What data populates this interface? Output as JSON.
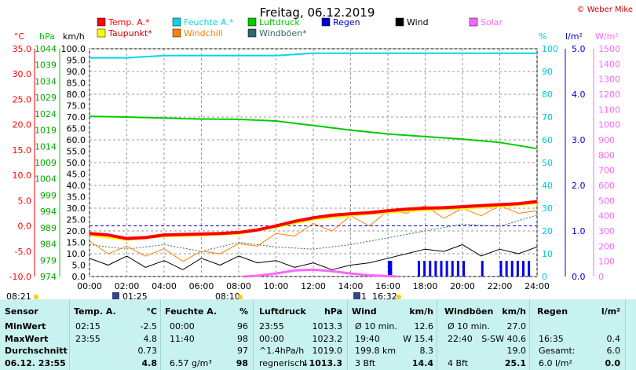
{
  "title": "Freitag, 06.12.2019",
  "credit": "© Weber Mike",
  "legend": [
    {
      "label": "Temp. A.*",
      "color": "#ff0000"
    },
    {
      "label": "Feuchte A.*",
      "color": "#00d8e8"
    },
    {
      "label": "Luftdruck",
      "color": "#00cc00"
    },
    {
      "label": "Regen",
      "color": "#0000cc"
    },
    {
      "label": "Wind",
      "color": "#000000"
    },
    {
      "label": "Solar",
      "color": "#ff66ff"
    },
    {
      "label": "Taupunkt*",
      "color": "#ffff00"
    },
    {
      "label": "Windchill",
      "color": "#ff8000"
    },
    {
      "label": "Windböen*",
      "color": "#336666"
    }
  ],
  "axes": {
    "temp_unit": "°C",
    "hpa_unit": "hPa",
    "kmh_unit": "km/h",
    "pct_unit": "%",
    "rain_unit": "l/m²",
    "solar_unit": "W/m²",
    "temp_ticks": [
      "35.0",
      "30.0",
      "25.0",
      "20.0",
      "15.0",
      "10.0",
      "5.0",
      "0.0",
      "-5.0",
      "-10.0"
    ],
    "hpa_ticks": [
      "1044",
      "1039",
      "1034",
      "1029",
      "1024",
      "1019",
      "1014",
      "1009",
      "1004",
      "999",
      "994",
      "989",
      "984",
      "979",
      "974"
    ],
    "kmh_ticks": [
      "100.0",
      "95.0",
      "90.0",
      "85.0",
      "80.0",
      "75.0",
      "70.0",
      "65.0",
      "60.0",
      "55.0",
      "50.0",
      "45.0",
      "40.0",
      "35.0",
      "30.0",
      "25.0",
      "20.0",
      "15.0",
      "10.0",
      "5.0",
      "0.0"
    ],
    "pct_ticks": [
      "100",
      "90",
      "80",
      "70",
      "60",
      "50",
      "40",
      "30",
      "20",
      "10",
      "0"
    ],
    "rain_ticks": [
      "5.0",
      "4.0",
      "3.0",
      "2.0",
      "1.0",
      "0.0"
    ],
    "solar_ticks": [
      "1500",
      "1400",
      "1300",
      "1200",
      "1100",
      "1000",
      "900",
      "800",
      "700",
      "600",
      "500",
      "400",
      "300",
      "200",
      "100",
      "0"
    ],
    "x_ticks": [
      "00:00",
      "02:00",
      "04:00",
      "06:00",
      "08:00",
      "10:00",
      "12:00",
      "14:00",
      "16:00",
      "18:00",
      "20:00",
      "22:00",
      "24:00"
    ]
  },
  "events": {
    "sunrise": "08:21",
    "sunset": "16:32",
    "moonrise": "01:25",
    "moonset": "08:10",
    "moon_right": "1"
  },
  "chart_data": {
    "type": "line",
    "x_unit": "hours",
    "x_range": [
      0,
      24
    ],
    "series": [
      {
        "name": "Temp. A.*",
        "axis": "°C",
        "color": "#ff0000",
        "x": [
          0,
          1,
          2,
          3,
          4,
          5,
          6,
          7,
          8,
          9,
          10,
          11,
          12,
          13,
          14,
          15,
          16,
          17,
          18,
          19,
          20,
          21,
          22,
          23,
          24
        ],
        "y": [
          -1.5,
          -1.8,
          -2.5,
          -2.3,
          -1.8,
          -1.7,
          -1.6,
          -1.5,
          -1.3,
          -0.8,
          0.0,
          0.9,
          1.6,
          2.1,
          2.4,
          2.6,
          3.0,
          3.3,
          3.5,
          3.6,
          3.8,
          4.0,
          4.2,
          4.4,
          4.8
        ]
      },
      {
        "name": "Taupunkt*",
        "axis": "°C",
        "color": "#ffff00",
        "x": [
          0,
          2,
          4,
          6,
          8,
          10,
          12,
          14,
          16,
          18,
          20,
          22,
          24
        ],
        "y": [
          -1.9,
          -2.8,
          -2.1,
          -1.9,
          -1.6,
          -0.3,
          1.2,
          2.0,
          2.6,
          3.1,
          3.4,
          3.8,
          4.4
        ]
      },
      {
        "name": "Feuchte A.*",
        "axis": "%",
        "color": "#00d8e8",
        "x": [
          0,
          2,
          4,
          6,
          8,
          10,
          12,
          14,
          16,
          18,
          20,
          22,
          24
        ],
        "y": [
          96,
          96,
          97,
          97,
          97,
          97,
          98,
          98,
          98,
          98,
          98,
          98,
          98
        ]
      },
      {
        "name": "Luftdruck",
        "axis": "hPa",
        "color": "#00cc00",
        "x": [
          0,
          2,
          4,
          6,
          8,
          10,
          12,
          14,
          16,
          18,
          20,
          22,
          24
        ],
        "y": [
          1023.2,
          1023.0,
          1022.7,
          1022.4,
          1022.3,
          1021.8,
          1020.4,
          1019.0,
          1017.8,
          1017.0,
          1016.2,
          1015.2,
          1013.3
        ]
      },
      {
        "name": "Windchill",
        "axis": "°C",
        "color": "#ff8000",
        "x": [
          0,
          1,
          2,
          3,
          4,
          5,
          6,
          7,
          8,
          9,
          10,
          11,
          12,
          13,
          14,
          15,
          16,
          17,
          18,
          19,
          20,
          21,
          22,
          23,
          24
        ],
        "y": [
          -3.0,
          -5.5,
          -4.0,
          -6.0,
          -4.5,
          -7.0,
          -5.0,
          -5.5,
          -3.5,
          -4.0,
          -1.5,
          -2.0,
          0.5,
          -1.0,
          2.0,
          0.0,
          3.0,
          2.5,
          4.0,
          1.5,
          3.5,
          2.0,
          4.0,
          2.5,
          3.0
        ]
      },
      {
        "name": "Wind",
        "axis": "km/h",
        "color": "#000000",
        "x": [
          0,
          1,
          2,
          3,
          4,
          5,
          6,
          7,
          8,
          9,
          10,
          11,
          12,
          13,
          14,
          15,
          16,
          17,
          18,
          19,
          20,
          21,
          22,
          23,
          24
        ],
        "y": [
          8,
          5,
          9,
          4,
          7,
          3,
          8,
          5,
          9,
          6,
          7,
          4,
          6,
          3,
          5,
          6,
          8,
          10,
          12,
          11,
          14,
          9,
          12,
          10,
          13
        ]
      },
      {
        "name": "Windböen*",
        "axis": "km/h",
        "color": "#336666",
        "x": [
          0,
          2,
          4,
          6,
          8,
          10,
          12,
          14,
          16,
          18,
          20,
          22,
          24
        ],
        "y": [
          14,
          12,
          14,
          11,
          15,
          13,
          12,
          14,
          17,
          20,
          23,
          22,
          27
        ]
      },
      {
        "name": "Solar",
        "axis": "W/m²",
        "color": "#ff66ff",
        "x": [
          8.3,
          9,
          10,
          11,
          12,
          13,
          14,
          15,
          16.5
        ],
        "y": [
          0,
          5,
          20,
          40,
          45,
          35,
          20,
          8,
          0
        ]
      }
    ],
    "rain_hours": [
      16.0,
      16.1,
      17.6,
      17.9,
      18.2,
      18.5,
      18.8,
      19.1,
      19.4,
      19.7,
      20.0,
      21.0,
      22.0,
      22.3,
      22.6,
      22.9,
      23.2,
      23.5
    ]
  },
  "stats": {
    "headers": {
      "sensor": "Sensor",
      "temp": "Temp. A.",
      "temp_u": "°C",
      "hum": "Feuchte A.",
      "hum_u": "%",
      "press": "Luftdruck",
      "press_u": "hPa",
      "wind": "Wind",
      "wind_u": "km/h",
      "gust": "Windböen",
      "gust_u": "km/h",
      "rain": "Regen",
      "rain_u": "l/m²"
    },
    "rows": [
      {
        "label": "MinWert",
        "t_time": "02:15",
        "t_val": "-2.5",
        "h_time": "00:00",
        "h_val": "96",
        "p_time": "23:55",
        "p_val": "1013.3",
        "w_a": "Ø 10 min.",
        "w_b": "12.6",
        "g_a": "Ø 10 min.",
        "g_b": "27.0",
        "r_a": "",
        "r_b": ""
      },
      {
        "label": "MaxWert",
        "t_time": "23:55",
        "t_val": "4.8",
        "h_time": "11:40",
        "h_val": "98",
        "p_time": "00:00",
        "p_val": "1023.2",
        "w_a": "19:40",
        "w_b": "W 15.4",
        "g_a": "22:40",
        "g_b": "S-SW 40.6",
        "r_a": "16:35",
        "r_b": "0.4"
      },
      {
        "label": "Durchschnitt",
        "t_time": "",
        "t_val": "0.73",
        "h_time": "",
        "h_val": "97",
        "p_time": "^1.4hPa/h",
        "p_val": "1019.0",
        "w_a": "199.8 km",
        "w_b": "8.3",
        "g_a": "",
        "g_b": "19.0",
        "r_a": "Gesamt:",
        "r_b": "6.0"
      },
      {
        "label": "06.12. 23:55",
        "t_time": "",
        "t_val": "4.8",
        "h_time": "6.57 g/m³",
        "h_val": "98",
        "p_time": "regnerisch",
        "p_val": "↓1013.3",
        "w_a": "3 Bft",
        "w_b": "14.4",
        "g_a": "4 Bft",
        "g_b": "25.1",
        "r_a": "6.0 l/m²",
        "r_b": "0.0"
      }
    ]
  }
}
